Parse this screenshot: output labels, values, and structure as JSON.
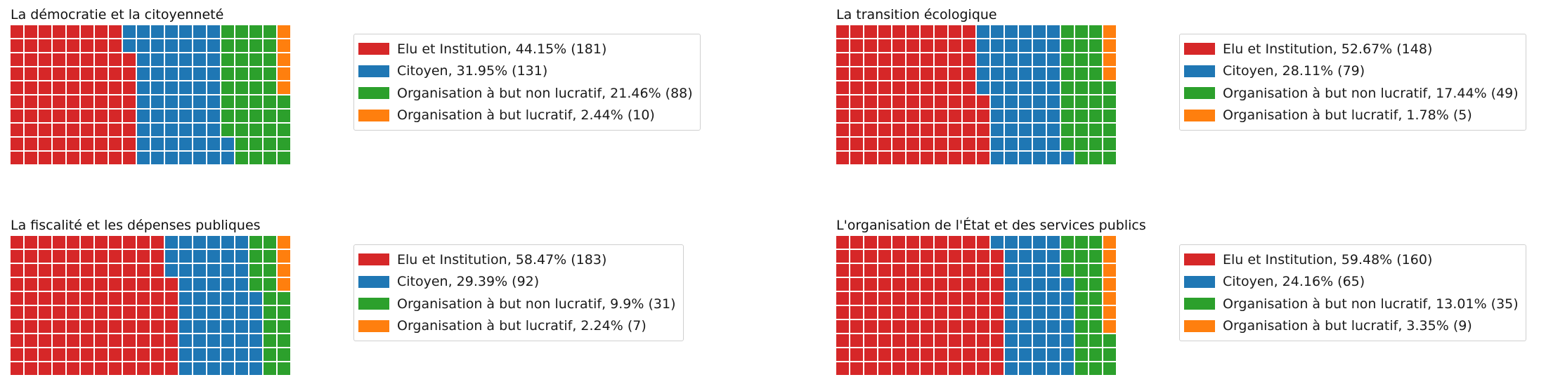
{
  "grid": {
    "columns": 20,
    "rows": 10
  },
  "colors": {
    "elu": "#d62728",
    "citoyen": "#1f77b4",
    "non_lucratif": "#2ca02c",
    "lucratif": "#ff7f0e"
  },
  "chart_data": [
    {
      "type": "waffle",
      "title": "La démocratie et la citoyenneté",
      "series": [
        {
          "key": "elu",
          "name": "Elu et Institution",
          "percent": 44.15,
          "count": 181,
          "label": "Elu et Institution, 44.15% (181)"
        },
        {
          "key": "citoyen",
          "name": "Citoyen",
          "percent": 31.95,
          "count": 131,
          "label": "Citoyen, 31.95% (131)"
        },
        {
          "key": "non_lucratif",
          "name": "Organisation à but non lucratif",
          "percent": 21.46,
          "count": 88,
          "label": "Organisation à but non lucratif, 21.46% (88)"
        },
        {
          "key": "lucratif",
          "name": "Organisation à but lucratif",
          "percent": 2.44,
          "count": 10,
          "label": "Organisation à but lucratif, 2.44% (10)"
        }
      ]
    },
    {
      "type": "waffle",
      "title": "La transition écologique",
      "series": [
        {
          "key": "elu",
          "name": "Elu et Institution",
          "percent": 52.67,
          "count": 148,
          "label": "Elu et Institution, 52.67% (148)"
        },
        {
          "key": "citoyen",
          "name": "Citoyen",
          "percent": 28.11,
          "count": 79,
          "label": "Citoyen, 28.11% (79)"
        },
        {
          "key": "non_lucratif",
          "name": "Organisation à but non lucratif",
          "percent": 17.44,
          "count": 49,
          "label": "Organisation à but non lucratif, 17.44% (49)"
        },
        {
          "key": "lucratif",
          "name": "Organisation à but lucratif",
          "percent": 1.78,
          "count": 5,
          "label": "Organisation à but lucratif, 1.78% (5)"
        }
      ]
    },
    {
      "type": "waffle",
      "title": "La fiscalité et les dépenses publiques",
      "series": [
        {
          "key": "elu",
          "name": "Elu et Institution",
          "percent": 58.47,
          "count": 183,
          "label": "Elu et Institution, 58.47% (183)"
        },
        {
          "key": "citoyen",
          "name": "Citoyen",
          "percent": 29.39,
          "count": 92,
          "label": "Citoyen, 29.39% (92)"
        },
        {
          "key": "non_lucratif",
          "name": "Organisation à but non lucratif",
          "percent": 9.9,
          "count": 31,
          "label": "Organisation à but non lucratif, 9.9% (31)"
        },
        {
          "key": "lucratif",
          "name": "Organisation à but lucratif",
          "percent": 2.24,
          "count": 7,
          "label": "Organisation à but lucratif, 2.24% (7)"
        }
      ]
    },
    {
      "type": "waffle",
      "title": "L'organisation de l'État et des services publics",
      "series": [
        {
          "key": "elu",
          "name": "Elu et Institution",
          "percent": 59.48,
          "count": 160,
          "label": "Elu et Institution, 59.48% (160)"
        },
        {
          "key": "citoyen",
          "name": "Citoyen",
          "percent": 24.16,
          "count": 65,
          "label": "Citoyen, 24.16% (65)"
        },
        {
          "key": "non_lucratif",
          "name": "Organisation à but non lucratif",
          "percent": 13.01,
          "count": 35,
          "label": "Organisation à but non lucratif, 13.01% (35)"
        },
        {
          "key": "lucratif",
          "name": "Organisation à but lucratif",
          "percent": 3.35,
          "count": 9,
          "label": "Organisation à but lucratif, 3.35% (9)"
        }
      ]
    }
  ]
}
